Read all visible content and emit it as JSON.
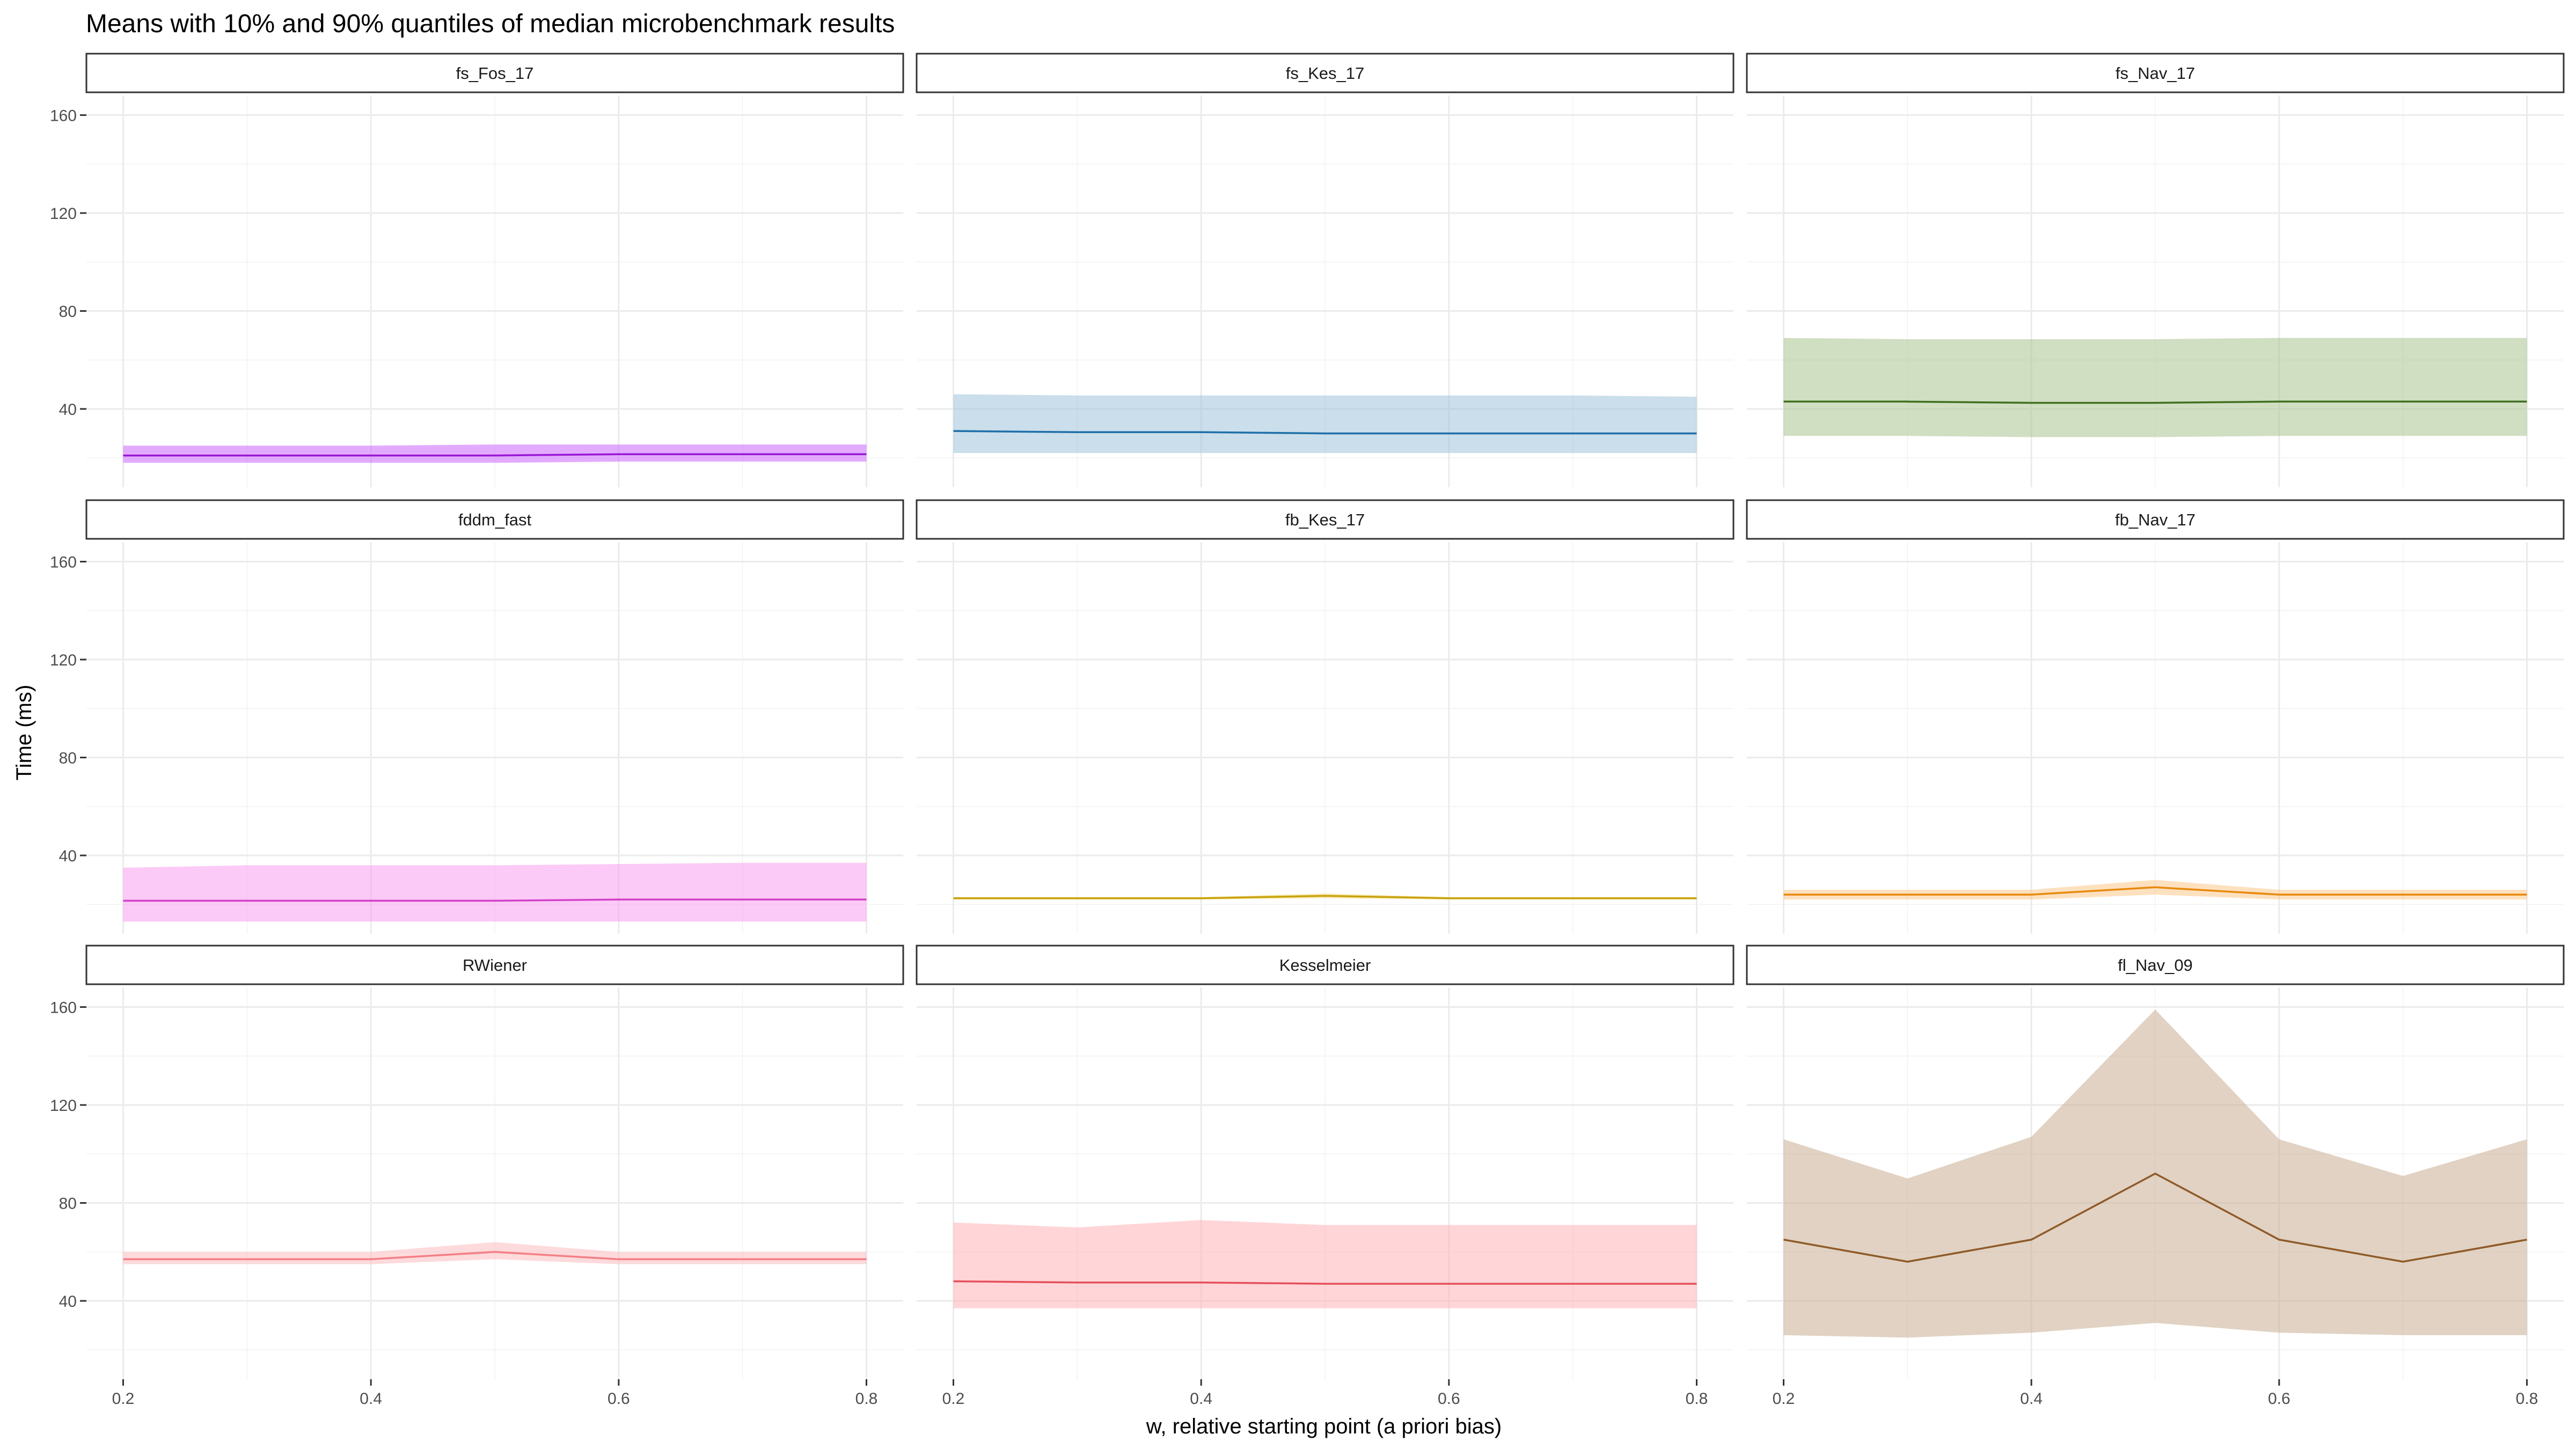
{
  "chart_data": {
    "type": "line",
    "title": "Means with 10% and 90% quantiles of median microbenchmark results",
    "xlabel": "w, relative starting point (a priori bias)",
    "ylabel": "Time (ms)",
    "xlim": [
      0.2,
      0.8
    ],
    "ylim": [
      8,
      168
    ],
    "x_ticks": [
      0.2,
      0.4,
      0.6,
      0.8
    ],
    "y_ticks": [
      40,
      80,
      120,
      160
    ],
    "x": [
      0.2,
      0.3,
      0.4,
      0.5,
      0.6,
      0.7,
      0.8
    ],
    "grid": true,
    "legend": "none",
    "panels": [
      {
        "name": "fs_Fos_17",
        "line_color": "#9a17d4",
        "band_color": "#cc66ff",
        "mean": [
          21,
          21,
          21,
          21,
          21.5,
          21.5,
          21.5
        ],
        "q10": [
          18,
          18,
          18,
          18,
          18.5,
          18.5,
          18.5
        ],
        "q90": [
          25,
          25,
          25,
          25.5,
          25.5,
          25.5,
          25.5
        ]
      },
      {
        "name": "fs_Kes_17",
        "line_color": "#1f6fa8",
        "band_color": "#9ec3db",
        "mean": [
          31,
          30.5,
          30.5,
          30,
          30,
          30,
          30
        ],
        "q10": [
          22,
          22,
          22,
          22,
          22,
          22,
          22
        ],
        "q90": [
          46,
          45.5,
          45.5,
          45.5,
          45.5,
          45.5,
          45
        ]
      },
      {
        "name": "fs_Nav_17",
        "line_color": "#3f6f1f",
        "band_color": "#a9c290",
        "mean": [
          43,
          43,
          42.5,
          42.5,
          43,
          43,
          43
        ],
        "q10": [
          29,
          29,
          28.5,
          28.5,
          29,
          29,
          29
        ],
        "q90": [
          69,
          68.5,
          68.5,
          68.5,
          69,
          69,
          69
        ]
      },
      {
        "name": "fddm_fast",
        "line_color": "#d142c9",
        "band_color": "#fa9eee",
        "mean": [
          21.5,
          21.5,
          21.5,
          21.5,
          22,
          22,
          22
        ],
        "q10": [
          13,
          13,
          13,
          13,
          13,
          13,
          13
        ],
        "q90": [
          35,
          36,
          36,
          36,
          36.5,
          37,
          37
        ]
      },
      {
        "name": "fb_Kes_17",
        "line_color": "#c9a20d",
        "band_color": "#f2db7a",
        "mean": [
          22.5,
          22.5,
          22.5,
          23.5,
          22.5,
          22.5,
          22.5
        ],
        "q10": [
          22,
          22,
          22,
          22.5,
          22,
          22,
          22
        ],
        "q90": [
          23,
          23,
          23,
          24.5,
          23,
          23,
          23
        ]
      },
      {
        "name": "fb_Nav_17",
        "line_color": "#e8890c",
        "band_color": "#fcc98a",
        "mean": [
          24,
          24,
          24,
          27,
          24,
          24,
          24
        ],
        "q10": [
          22,
          22,
          22,
          24,
          22,
          22,
          22
        ],
        "q90": [
          26,
          26,
          26,
          30,
          26,
          26,
          26
        ]
      },
      {
        "name": "RWiener",
        "line_color": "#f47f86",
        "band_color": "#fcbcc0",
        "mean": [
          57,
          57,
          57,
          60,
          57,
          57,
          57
        ],
        "q10": [
          55,
          55,
          55,
          57,
          55,
          55,
          55
        ],
        "q90": [
          60,
          60,
          60,
          64,
          60,
          60,
          60
        ]
      },
      {
        "name": "Kesselmeier",
        "line_color": "#e6505a",
        "band_color": "#ffb3b8",
        "mean": [
          48,
          47.5,
          47.5,
          47,
          47,
          47,
          47
        ],
        "q10": [
          37,
          37,
          37,
          37,
          37,
          37,
          37
        ],
        "q90": [
          72,
          70,
          73,
          71,
          71,
          71,
          71
        ]
      },
      {
        "name": "fl_Nav_09",
        "line_color": "#8f5a28",
        "band_color": "#c9ad91",
        "mean": [
          65,
          56,
          65,
          92,
          65,
          56,
          65
        ],
        "q10": [
          26,
          25,
          27,
          31,
          27,
          26,
          26
        ],
        "q90": [
          106,
          90,
          107,
          159,
          106,
          91,
          106
        ]
      }
    ]
  }
}
